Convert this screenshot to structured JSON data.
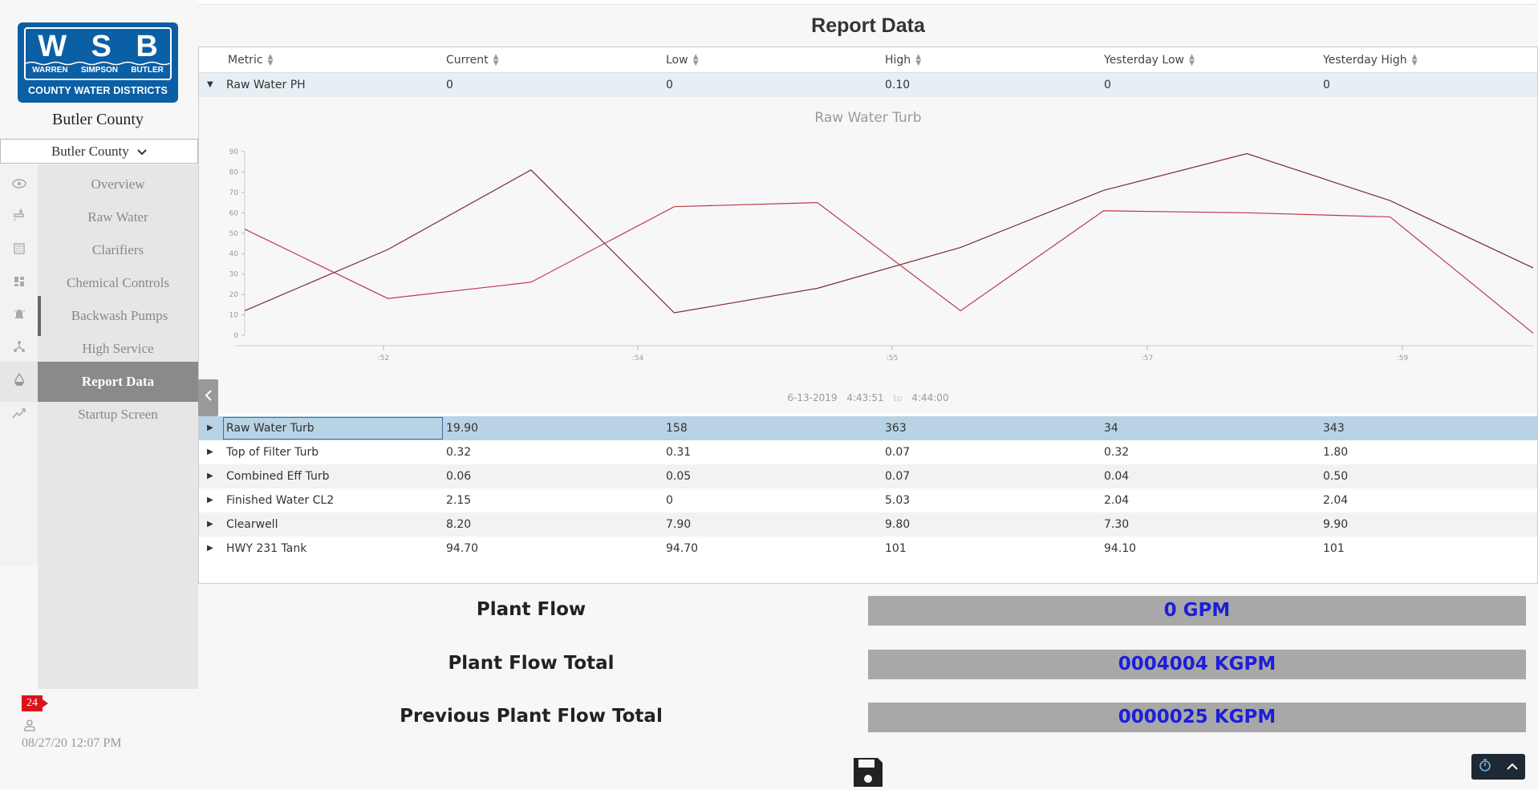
{
  "logo": {
    "letters": [
      "W",
      "S",
      "B"
    ],
    "words": [
      "WARREN",
      "SIMPSON",
      "BUTLER"
    ],
    "bottom": "COUNTY WATER DISTRICTS",
    "color": "#0b5fa5"
  },
  "sidebar": {
    "county_title": "Butler County",
    "county_select": "Butler County",
    "items": [
      {
        "label": "Overview",
        "icon": "eye-icon"
      },
      {
        "label": "Raw Water",
        "icon": "faucet-icon"
      },
      {
        "label": "Clarifiers",
        "icon": "calculator-icon"
      },
      {
        "label": "Chemical Controls",
        "icon": "dashboard-icon"
      },
      {
        "label": "Backwash Pumps",
        "icon": "alarm-bell-icon"
      },
      {
        "label": "High Service",
        "icon": "network-icon"
      },
      {
        "label": "Report Data",
        "icon": "drop-icon"
      },
      {
        "label": "Startup Screen",
        "icon": "trend-icon"
      }
    ],
    "active": "Report Data",
    "badge": "24",
    "datetime": "08/27/20 12:07 PM"
  },
  "page": {
    "title": "Report Data"
  },
  "table": {
    "headers": [
      "Metric",
      "Current",
      "Low",
      "High",
      "Yesterday Low",
      "Yesterday High"
    ],
    "expanded_row": {
      "cells": [
        "Raw Water PH",
        "0",
        "0",
        "0.10",
        "0",
        "0"
      ]
    },
    "rows": [
      {
        "cells": [
          "Raw Water Turb",
          "19.90",
          "158",
          "363",
          "34",
          "343"
        ]
      },
      {
        "cells": [
          "Top of Filter Turb",
          "0.32",
          "0.31",
          "0.07",
          "0.32",
          "1.80"
        ]
      },
      {
        "cells": [
          "Combined Eff Turb",
          "0.06",
          "0.05",
          "0.07",
          "0.04",
          "0.50"
        ]
      },
      {
        "cells": [
          "Finished Water CL2",
          "2.15",
          "0",
          "5.03",
          "2.04",
          "2.04"
        ]
      },
      {
        "cells": [
          "Clearwell",
          "8.20",
          "7.90",
          "9.80",
          "7.30",
          "9.90"
        ]
      },
      {
        "cells": [
          "HWY 231 Tank",
          "94.70",
          "94.70",
          "101",
          "94.10",
          "101"
        ]
      }
    ]
  },
  "chart_data": {
    "type": "line",
    "title": "Raw Water Turb",
    "ylim": [
      0,
      90
    ],
    "yticks": [
      0,
      10,
      20,
      30,
      40,
      50,
      60,
      70,
      80,
      90
    ],
    "xticks": [
      ":52",
      ":54",
      ":55",
      ":57",
      ":59"
    ],
    "x": [
      0,
      1,
      2,
      3,
      4,
      5,
      6,
      7,
      8,
      9
    ],
    "series": [
      {
        "values": [
          12,
          42,
          81,
          11,
          23,
          43,
          71,
          89,
          66,
          33
        ],
        "color": "#7a2a3c"
      },
      {
        "values": [
          52,
          18,
          26,
          63,
          65,
          12,
          61,
          60,
          58,
          1
        ],
        "color": "#c0394b"
      }
    ],
    "range": {
      "date": "6-13-2019",
      "start": "4:43:51",
      "to": "to",
      "end": "4:44:00"
    }
  },
  "flow": [
    {
      "label": "Plant Flow",
      "value": "0 GPM"
    },
    {
      "label": "Plant Flow Total",
      "value": "0004004 KGPM"
    },
    {
      "label": "Previous Plant Flow Total",
      "value": "0000025 KGPM"
    }
  ]
}
